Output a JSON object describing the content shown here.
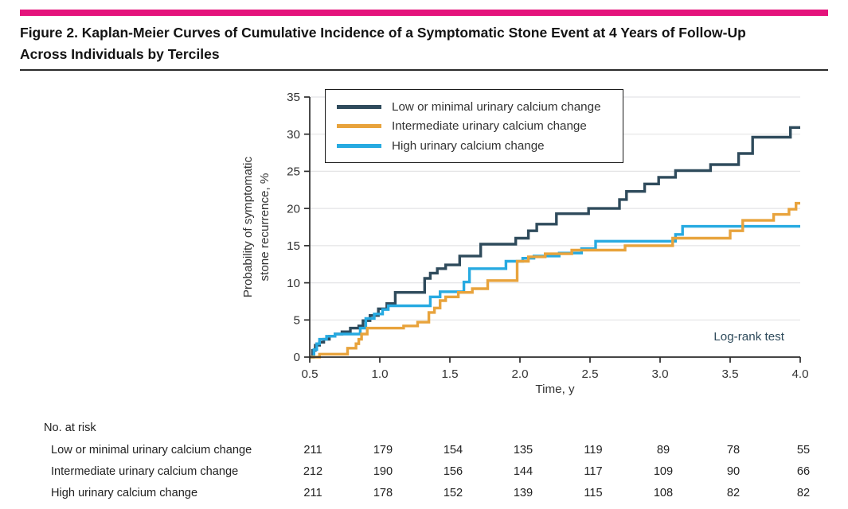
{
  "header": {
    "accent_color": "#e4137c",
    "title_lines": [
      "Figure 2. Kaplan-Meier Curves of Cumulative Incidence of a Symptomatic Stone Event at 4 Years of Follow-Up",
      "Across Individuals by Terciles"
    ]
  },
  "chart_data": {
    "type": "line",
    "subtype": "kaplan-meier-step",
    "xlabel": "Time, y",
    "ylabel_lines": [
      "Probability of symptomatic",
      "stone recurrence, %"
    ],
    "xlim": [
      0.5,
      4.0
    ],
    "ylim": [
      0,
      35
    ],
    "xticks": [
      0.5,
      1.0,
      1.5,
      2.0,
      2.5,
      3.0,
      3.5,
      4.0
    ],
    "xtick_labels": [
      "0.5",
      "1.0",
      "1.5",
      "2.0",
      "2.5",
      "3.0",
      "3.5",
      "4.0"
    ],
    "yticks": [
      0,
      5,
      10,
      15,
      20,
      25,
      30,
      35
    ],
    "grid": true,
    "legend_position": "top-left-inside",
    "annotation": "Log-rank test",
    "series": [
      {
        "name": "Low or minimal urinary calcium change",
        "color": "#2f4b5c",
        "steps": [
          [
            0.5,
            0
          ],
          [
            0.52,
            0.9
          ],
          [
            0.54,
            1.6
          ],
          [
            0.57,
            2.0
          ],
          [
            0.6,
            2.4
          ],
          [
            0.64,
            2.8
          ],
          [
            0.68,
            3.1
          ],
          [
            0.73,
            3.4
          ],
          [
            0.79,
            3.9
          ],
          [
            0.85,
            4.2
          ],
          [
            0.88,
            4.9
          ],
          [
            0.93,
            5.6
          ],
          [
            0.99,
            6.5
          ],
          [
            1.05,
            7.2
          ],
          [
            1.11,
            8.7
          ],
          [
            1.32,
            10.6
          ],
          [
            1.36,
            11.3
          ],
          [
            1.41,
            11.9
          ],
          [
            1.47,
            12.4
          ],
          [
            1.57,
            13.6
          ],
          [
            1.72,
            15.2
          ],
          [
            1.97,
            16.0
          ],
          [
            2.06,
            17.0
          ],
          [
            2.12,
            17.9
          ],
          [
            2.26,
            19.3
          ],
          [
            2.49,
            20.0
          ],
          [
            2.71,
            21.2
          ],
          [
            2.76,
            22.3
          ],
          [
            2.89,
            23.3
          ],
          [
            2.99,
            24.2
          ],
          [
            3.11,
            25.1
          ],
          [
            3.36,
            25.9
          ],
          [
            3.56,
            27.4
          ],
          [
            3.66,
            29.6
          ],
          [
            3.93,
            30.9
          ]
        ]
      },
      {
        "name": "Intermediate urinary calcium change",
        "color": "#e8a33c",
        "steps": [
          [
            0.5,
            0
          ],
          [
            0.57,
            0.4
          ],
          [
            0.77,
            1.2
          ],
          [
            0.83,
            1.8
          ],
          [
            0.85,
            2.4
          ],
          [
            0.87,
            3.1
          ],
          [
            0.91,
            3.9
          ],
          [
            1.17,
            4.2
          ],
          [
            1.27,
            4.7
          ],
          [
            1.35,
            6.0
          ],
          [
            1.39,
            6.6
          ],
          [
            1.43,
            7.6
          ],
          [
            1.47,
            8.1
          ],
          [
            1.56,
            8.7
          ],
          [
            1.66,
            9.2
          ],
          [
            1.77,
            10.3
          ],
          [
            1.98,
            12.9
          ],
          [
            2.06,
            13.5
          ],
          [
            2.18,
            13.9
          ],
          [
            2.37,
            14.4
          ],
          [
            2.75,
            15.0
          ],
          [
            3.09,
            16.0
          ],
          [
            3.5,
            17.0
          ],
          [
            3.59,
            18.4
          ],
          [
            3.81,
            19.2
          ],
          [
            3.92,
            19.9
          ],
          [
            3.97,
            20.7
          ]
        ]
      },
      {
        "name": "High urinary calcium change",
        "color": "#27aae1",
        "steps": [
          [
            0.5,
            0
          ],
          [
            0.53,
            1.0
          ],
          [
            0.55,
            1.8
          ],
          [
            0.57,
            2.4
          ],
          [
            0.62,
            2.8
          ],
          [
            0.68,
            3.1
          ],
          [
            0.86,
            3.9
          ],
          [
            0.9,
            5.2
          ],
          [
            0.96,
            5.8
          ],
          [
            1.02,
            6.4
          ],
          [
            1.06,
            6.9
          ],
          [
            1.36,
            8.1
          ],
          [
            1.43,
            8.8
          ],
          [
            1.6,
            10.1
          ],
          [
            1.64,
            11.9
          ],
          [
            1.9,
            12.9
          ],
          [
            2.02,
            13.3
          ],
          [
            2.1,
            13.6
          ],
          [
            2.28,
            14.0
          ],
          [
            2.44,
            14.6
          ],
          [
            2.54,
            15.6
          ],
          [
            3.11,
            16.5
          ],
          [
            3.16,
            17.6
          ]
        ]
      }
    ]
  },
  "risk_table": {
    "header": "No. at risk",
    "rows": [
      {
        "label": "Low or minimal urinary calcium change",
        "values": [
          "211",
          "179",
          "154",
          "135",
          "119",
          "89",
          "78",
          "55"
        ]
      },
      {
        "label": "Intermediate urinary calcium change",
        "values": [
          "212",
          "190",
          "156",
          "144",
          "117",
          "109",
          "90",
          "66"
        ]
      },
      {
        "label": "High urinary calcium change",
        "values": [
          "211",
          "178",
          "152",
          "139",
          "115",
          "108",
          "82",
          "82"
        ]
      }
    ]
  }
}
